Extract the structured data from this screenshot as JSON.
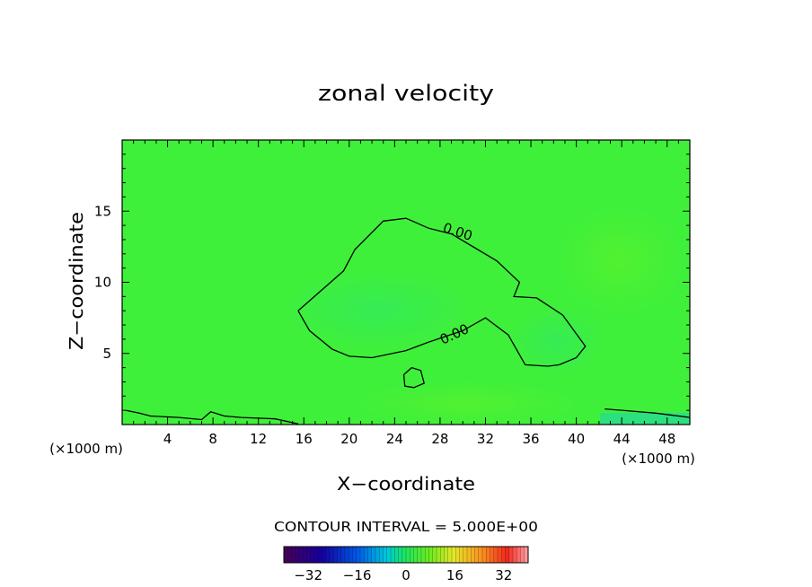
{
  "chart_data": {
    "type": "heatmap",
    "title": "zonal velocity",
    "xlabel": "X−coordinate",
    "ylabel": "Z−coordinate",
    "x_units_left": "(×1000 m)",
    "x_units_right": "(×1000 m)",
    "xlim": [
      0,
      50
    ],
    "ylim": [
      0,
      20
    ],
    "x_ticks": [
      4,
      8,
      12,
      16,
      20,
      24,
      28,
      32,
      36,
      40,
      44,
      48
    ],
    "y_ticks": [
      5,
      10,
      15
    ],
    "contour_interval_text": "CONTOUR INTERVAL = 5.000E+00",
    "contour_label": "0.00",
    "contours": [
      {
        "level": 0,
        "name": "zero-contour-upper",
        "x": [
          15.5,
          19.5,
          20.5,
          23,
          25,
          27,
          29,
          33,
          35,
          34.5,
          36.5,
          38.8,
          40.8,
          40,
          38.5,
          37.5,
          35.5,
          34,
          32,
          30,
          27,
          25,
          22,
          20,
          18.5,
          16.5,
          15.5
        ],
        "y": [
          8,
          10.8,
          12.3,
          14.3,
          14.5,
          13.8,
          13.4,
          11.5,
          10.0,
          9.0,
          8.9,
          7.7,
          5.5,
          4.7,
          4.2,
          4.1,
          4.2,
          6.3,
          7.5,
          6.6,
          5.8,
          5.2,
          4.7,
          4.8,
          5.3,
          6.6,
          8.0
        ]
      },
      {
        "level": 0,
        "name": "zero-contour-island",
        "x": [
          24.8,
          25.5,
          26.3,
          26.6,
          25.7,
          24.9,
          24.8
        ],
        "y": [
          3.5,
          4.0,
          3.8,
          2.9,
          2.6,
          2.7,
          3.5
        ]
      },
      {
        "level": 0,
        "name": "zero-contour-surface-left",
        "x": [
          0.3,
          1.5,
          2.5,
          5,
          7,
          7.8,
          9,
          10.5,
          12,
          13.5,
          15.5
        ],
        "y": [
          1.0,
          0.8,
          0.6,
          0.5,
          0.35,
          0.9,
          0.6,
          0.5,
          0.45,
          0.4,
          0.05
        ]
      },
      {
        "level": 0,
        "name": "zero-contour-surface-right",
        "x": [
          42.5,
          44,
          47,
          50
        ],
        "y": [
          1.1,
          1.0,
          0.8,
          0.5
        ]
      }
    ],
    "field_value_near_zero": 0,
    "colorbar": {
      "ticks": [
        -32,
        -16,
        0,
        16,
        32
      ],
      "tick_labels": [
        "−32",
        "−16",
        "0",
        "16",
        "32"
      ],
      "range": [
        -40,
        40
      ]
    }
  }
}
